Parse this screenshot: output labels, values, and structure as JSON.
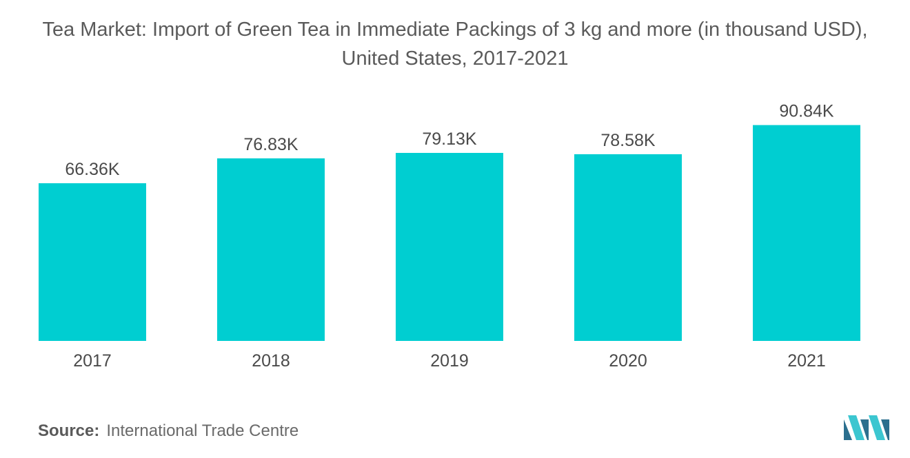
{
  "title_line1": "Tea Market: Import of Green Tea in Immediate Packings of 3 kg and more (in thousand USD),",
  "title_line2": "United States, 2017-2021",
  "source_label": "Source:",
  "source_text": "International Trade Centre",
  "logo_icon": "mordor-intelligence-logo-icon",
  "colors": {
    "bar": "#00CED1",
    "text": "#555555",
    "logo_dark": "#2b6f8e",
    "logo_light": "#3cc6d0"
  },
  "chart_data": {
    "type": "bar",
    "title": "Tea Market: Import of Green Tea in Immediate Packings of 3 kg and more (in thousand USD), United States, 2017-2021",
    "categories": [
      "2017",
      "2018",
      "2019",
      "2020",
      "2021"
    ],
    "values": [
      66.36,
      76.83,
      79.13,
      78.58,
      90.84
    ],
    "data_labels": [
      "66.36K",
      "76.83K",
      "79.13K",
      "78.58K",
      "90.84K"
    ],
    "xlabel": "",
    "ylabel": "",
    "ylim": [
      0,
      100
    ],
    "grid": false,
    "legend": "none"
  }
}
